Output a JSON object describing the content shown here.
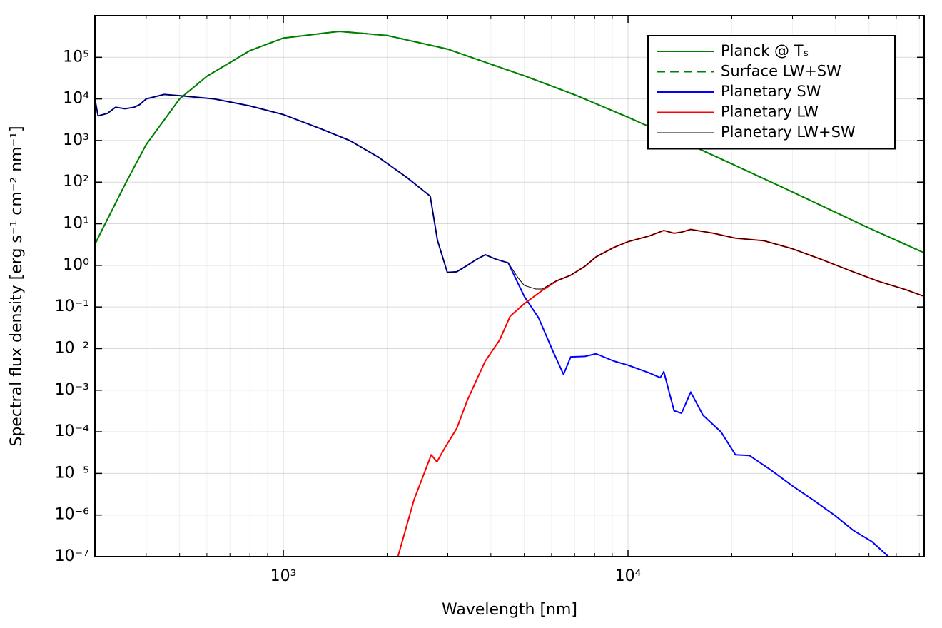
{
  "chart_data": {
    "type": "line",
    "xlabel": "Wavelength [nm]",
    "ylabel": "Spectral flux density [erg s⁻¹ cm⁻² nm⁻¹]",
    "log_x": true,
    "log_y": true,
    "grid": true,
    "legend": "upper right",
    "xlim": [
      284,
      72300
    ],
    "ylim": [
      1e-07,
      1000000.0
    ],
    "xticks": [
      {
        "value": 1000,
        "label": "10³"
      },
      {
        "value": 10000,
        "label": "10⁴"
      }
    ],
    "xminorticks": [
      300,
      400,
      500,
      600,
      700,
      800,
      900,
      2000,
      3000,
      4000,
      5000,
      6000,
      7000,
      8000,
      9000,
      20000,
      30000,
      40000,
      50000,
      60000,
      70000
    ],
    "yticks": [
      {
        "value": 1e-07,
        "label": "10⁻⁷"
      },
      {
        "value": 1e-06,
        "label": "10⁻⁶"
      },
      {
        "value": 1e-05,
        "label": "10⁻⁵"
      },
      {
        "value": 0.0001,
        "label": "10⁻⁴"
      },
      {
        "value": 0.001,
        "label": "10⁻³"
      },
      {
        "value": 0.01,
        "label": "10⁻²"
      },
      {
        "value": 0.1,
        "label": "10⁻¹"
      },
      {
        "value": 1,
        "label": "10⁰"
      },
      {
        "value": 10,
        "label": "10¹"
      },
      {
        "value": 100,
        "label": "10²"
      },
      {
        "value": 1000,
        "label": "10³"
      },
      {
        "value": 10000,
        "label": "10⁴"
      },
      {
        "value": 100000,
        "label": "10⁵"
      }
    ],
    "series": [
      {
        "name": "Planck @ Tₛ",
        "color": "#008000",
        "dash": false,
        "width": 2,
        "x": [
          284,
          300,
          350,
          400,
          500,
          600,
          800,
          1000,
          1450,
          2000,
          3000,
          5000,
          7000,
          10000,
          15000,
          20000,
          30000,
          50000,
          72300
        ],
        "values": [
          3.2,
          8,
          100,
          800,
          10000,
          35000,
          145000,
          290000,
          420000,
          335000,
          157000,
          36000,
          12600,
          3620,
          816,
          275,
          58,
          7.9,
          2.0
        ]
      },
      {
        "name": "Surface LW+SW",
        "color": "#008000",
        "dash": true,
        "width": 2,
        "x": [
          284,
          300,
          350,
          400,
          500,
          600,
          800,
          1000,
          1450,
          2000,
          3000,
          5000,
          7000,
          10000,
          15000,
          20000,
          30000,
          50000,
          72300
        ],
        "values": [
          3.2,
          8,
          100,
          800,
          10000,
          35000,
          145000,
          290000,
          420000,
          335000,
          157000,
          36000,
          12600,
          3620,
          816,
          275,
          58,
          7.9,
          2.0
        ]
      },
      {
        "name": "Planetary SW",
        "color": "#0000ff",
        "dash": false,
        "width": 2,
        "x": [
          284,
          290,
          309,
          326,
          347,
          369,
          383,
          400,
          451,
          508,
          630,
          799,
          1000,
          1288,
          1558,
          1886,
          2281,
          2668,
          2800,
          2990,
          3184,
          3418,
          3639,
          3853,
          4140,
          4490,
          5000,
          5500,
          6050,
          6500,
          6820,
          7500,
          8080,
          9100,
          10000,
          11530,
          12400,
          12700,
          13600,
          14300,
          15200,
          16500,
          18600,
          20500,
          22500,
          26000,
          30000,
          34700,
          40000,
          45000,
          51000,
          57000
        ],
        "values": [
          10000,
          3900,
          4500,
          6300,
          5800,
          6300,
          7300,
          10000,
          12800,
          11800,
          10000,
          6800,
          4200,
          1900,
          1000,
          400,
          130,
          46,
          4.0,
          0.68,
          0.7,
          1.0,
          1.4,
          1.8,
          1.4,
          1.15,
          0.18,
          0.055,
          0.0088,
          0.0024,
          0.0063,
          0.0065,
          0.0075,
          0.005,
          0.004,
          0.0026,
          0.002,
          0.0028,
          0.00032,
          0.00028,
          0.0009,
          0.00025,
          0.0001,
          2.8e-05,
          2.7e-05,
          1.2e-05,
          5e-06,
          2.2e-06,
          9.5e-07,
          4.3e-07,
          2.3e-07,
          1e-07
        ]
      },
      {
        "name": "Planetary LW",
        "color": "#ff0000",
        "dash": false,
        "width": 2,
        "x": [
          2150,
          2393,
          2686,
          2790,
          2960,
          3184,
          3418,
          3639,
          3853,
          4240,
          4550,
          5000,
          5640,
          6200,
          6820,
          7500,
          8080,
          9100,
          10000,
          11530,
          12700,
          13600,
          14300,
          15200,
          17700,
          20500,
          24800,
          30000,
          36300,
          44000,
          53000,
          64000,
          72300
        ],
        "values": [
          1e-07,
          2.3e-06,
          2.8e-05,
          1.9e-05,
          4.5e-05,
          0.00012,
          0.00057,
          0.0018,
          0.005,
          0.016,
          0.06,
          0.12,
          0.25,
          0.42,
          0.58,
          0.95,
          1.6,
          2.7,
          3.7,
          5.1,
          6.9,
          5.9,
          6.3,
          7.3,
          5.9,
          4.5,
          3.9,
          2.5,
          1.4,
          0.75,
          0.42,
          0.26,
          0.18
        ]
      },
      {
        "name": "Planetary LW+SW",
        "color": "#000000",
        "dash": false,
        "width": 1,
        "x": [
          284,
          290,
          309,
          326,
          347,
          369,
          383,
          400,
          451,
          508,
          630,
          799,
          1000,
          1288,
          1558,
          1886,
          2281,
          2668,
          2800,
          2990,
          3184,
          3418,
          3639,
          3853,
          4140,
          4490,
          4800,
          5000,
          5400,
          5640,
          6200,
          6820,
          7500,
          8080,
          9100,
          10000,
          11530,
          12700,
          13600,
          14300,
          15200,
          17700,
          20500,
          24800,
          30000,
          36300,
          44000,
          53000,
          64000,
          72300
        ],
        "values": [
          10000,
          3900,
          4500,
          6300,
          5800,
          6300,
          7300,
          10000,
          12800,
          11800,
          10000,
          6800,
          4200,
          1900,
          1000,
          400,
          130,
          46,
          4.0,
          0.68,
          0.7,
          1.0,
          1.4,
          1.8,
          1.4,
          1.15,
          0.5,
          0.33,
          0.27,
          0.27,
          0.43,
          0.58,
          0.95,
          1.6,
          2.7,
          3.7,
          5.1,
          6.9,
          5.9,
          6.3,
          7.3,
          5.9,
          4.5,
          3.9,
          2.5,
          1.4,
          0.75,
          0.42,
          0.26,
          0.18
        ]
      }
    ]
  }
}
